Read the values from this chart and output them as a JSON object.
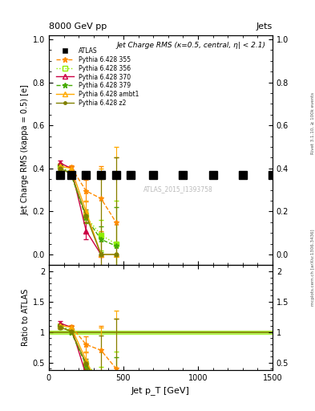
{
  "title_top": "8000 GeV pp",
  "title_right": "Jets",
  "plot_title": "Jet Charge RMS (κ=0.5, central, η| < 2.1)",
  "watermark": "ATLAS_2015_I1393758",
  "xlabel": "Jet p_T [GeV]",
  "ylabel_main": "Jet Charge RMS (kappa = 0.5) [e]",
  "ylabel_ratio": "Ratio to ATLAS",
  "right_label_top": "Rivet 3.1.10, ≥ 100k events",
  "right_label_bot": "mcplots.cern.ch [arXiv:1306.3436]",
  "xlim": [
    0,
    1500
  ],
  "ylim_main": [
    -0.05,
    1.02
  ],
  "ylim_ratio": [
    0.38,
    2.1
  ],
  "atlas_x": [
    75,
    150,
    250,
    350,
    450,
    550,
    700,
    900,
    1100,
    1300,
    1500
  ],
  "atlas_y": [
    0.37,
    0.37,
    0.37,
    0.37,
    0.37,
    0.37,
    0.37,
    0.37,
    0.37,
    0.37,
    0.37
  ],
  "atlas_color": "#000000",
  "atlas_markersize": 7,
  "pythia_data": {
    "355": {
      "x": [
        75,
        150,
        250,
        350,
        450
      ],
      "y": [
        0.41,
        0.405,
        0.295,
        0.26,
        0.15
      ],
      "yerr_lo": [
        0.01,
        0.01,
        0.05,
        0.15,
        0.3
      ],
      "yerr_hi": [
        0.01,
        0.01,
        0.05,
        0.15,
        0.3
      ],
      "color": "#ff8c00",
      "marker": "*",
      "linestyle": "--",
      "label": "Pythia 6.428 355"
    },
    "356": {
      "x": [
        75,
        150,
        250,
        350,
        450
      ],
      "y": [
        0.41,
        0.38,
        0.175,
        0.09,
        0.05
      ],
      "yerr_lo": [
        0.01,
        0.01,
        0.025,
        0.07,
        0.2
      ],
      "yerr_hi": [
        0.01,
        0.01,
        0.025,
        0.07,
        0.2
      ],
      "color": "#90ee00",
      "marker": "s",
      "linestyle": ":",
      "label": "Pythia 6.428 356"
    },
    "370": {
      "x": [
        75,
        150,
        250,
        350
      ],
      "y": [
        0.425,
        0.4,
        0.11,
        0.0
      ],
      "yerr_lo": [
        0.01,
        0.01,
        0.04,
        0.1
      ],
      "yerr_hi": [
        0.01,
        0.01,
        0.04,
        0.1
      ],
      "color": "#cc0044",
      "marker": "^",
      "linestyle": "-",
      "label": "Pythia 6.428 370"
    },
    "379": {
      "x": [
        75,
        150,
        250,
        350,
        450
      ],
      "y": [
        0.41,
        0.37,
        0.17,
        0.07,
        0.04
      ],
      "yerr_lo": [
        0.01,
        0.01,
        0.025,
        0.06,
        0.18
      ],
      "yerr_hi": [
        0.01,
        0.01,
        0.025,
        0.06,
        0.18
      ],
      "color": "#44aa00",
      "marker": "*",
      "linestyle": "--",
      "label": "Pythia 6.428 379"
    },
    "ambt1": {
      "x": [
        75,
        150,
        250,
        350,
        450
      ],
      "y": [
        0.41,
        0.4,
        0.2,
        0.0,
        0.0
      ],
      "yerr_lo": [
        0.01,
        0.01,
        0.05,
        0.4,
        0.5
      ],
      "yerr_hi": [
        0.01,
        0.01,
        0.05,
        0.4,
        0.5
      ],
      "color": "#ffaa00",
      "marker": "^",
      "linestyle": "-",
      "label": "Pythia 6.428 ambt1"
    },
    "z2": {
      "x": [
        75,
        150,
        250,
        350,
        450
      ],
      "y": [
        0.4,
        0.375,
        0.18,
        0.0,
        0.0
      ],
      "yerr_lo": [
        0.01,
        0.01,
        0.03,
        0.35,
        0.45
      ],
      "yerr_hi": [
        0.01,
        0.01,
        0.03,
        0.35,
        0.45
      ],
      "color": "#808000",
      "marker": ".",
      "linestyle": "-",
      "label": "Pythia 6.428 z2"
    }
  },
  "ratio_band_color": "#90ee00",
  "ratio_line_color": "#808000",
  "ratio_yticks": [
    0.5,
    1.0,
    1.5,
    2.0
  ],
  "main_yticks": [
    0.0,
    0.2,
    0.4,
    0.6,
    0.8,
    1.0
  ],
  "xticks": [
    0,
    500,
    1000,
    1500
  ]
}
